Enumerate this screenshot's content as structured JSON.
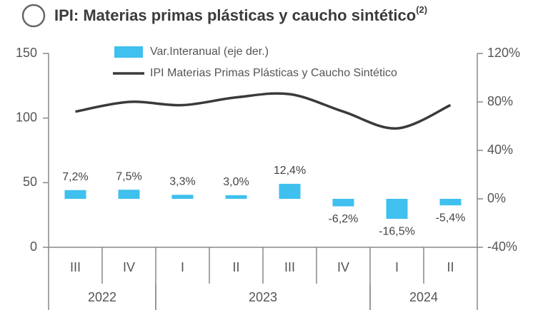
{
  "chart_data": {
    "type": "bar_line",
    "title": "IPI: Materias primas plásticas y caucho sintético",
    "title_note": "(2)",
    "categories": [
      "III",
      "IV",
      "I",
      "II",
      "III",
      "IV",
      "I",
      "II"
    ],
    "groups": [
      {
        "label": "2022",
        "span": 2
      },
      {
        "label": "2023",
        "span": 4
      },
      {
        "label": "2024",
        "span": 2
      }
    ],
    "series": [
      {
        "name": "Var.Interanual (eje der.)",
        "type": "bar",
        "axis": "y2",
        "color": "#3fc0ee",
        "values": [
          7.2,
          7.5,
          3.3,
          3.0,
          12.4,
          -6.2,
          -16.5,
          -5.4
        ],
        "value_labels": [
          "7,2%",
          "7,5%",
          "3,3%",
          "3,0%",
          "12,4%",
          "-6,2%",
          "-16,5%",
          "-5,4%"
        ]
      },
      {
        "name": "IPI Materias Primas Plásticas y Caucho Sintético",
        "type": "line",
        "color": "#3a3a3a",
        "values": [
          105,
          112.5,
          110,
          116,
          118.5,
          105,
          92,
          110
        ]
      }
    ],
    "ylim": [
      0,
      150
    ],
    "yticks": [
      0,
      50,
      100,
      150
    ],
    "y2lim": [
      -40,
      120
    ],
    "y2ticks": [
      {
        "value": -40,
        "label": "-40%"
      },
      {
        "value": 0,
        "label": "0%"
      },
      {
        "value": 40,
        "label": "40%"
      },
      {
        "value": 80,
        "label": "80%"
      },
      {
        "value": 120,
        "label": "120%"
      }
    ]
  }
}
